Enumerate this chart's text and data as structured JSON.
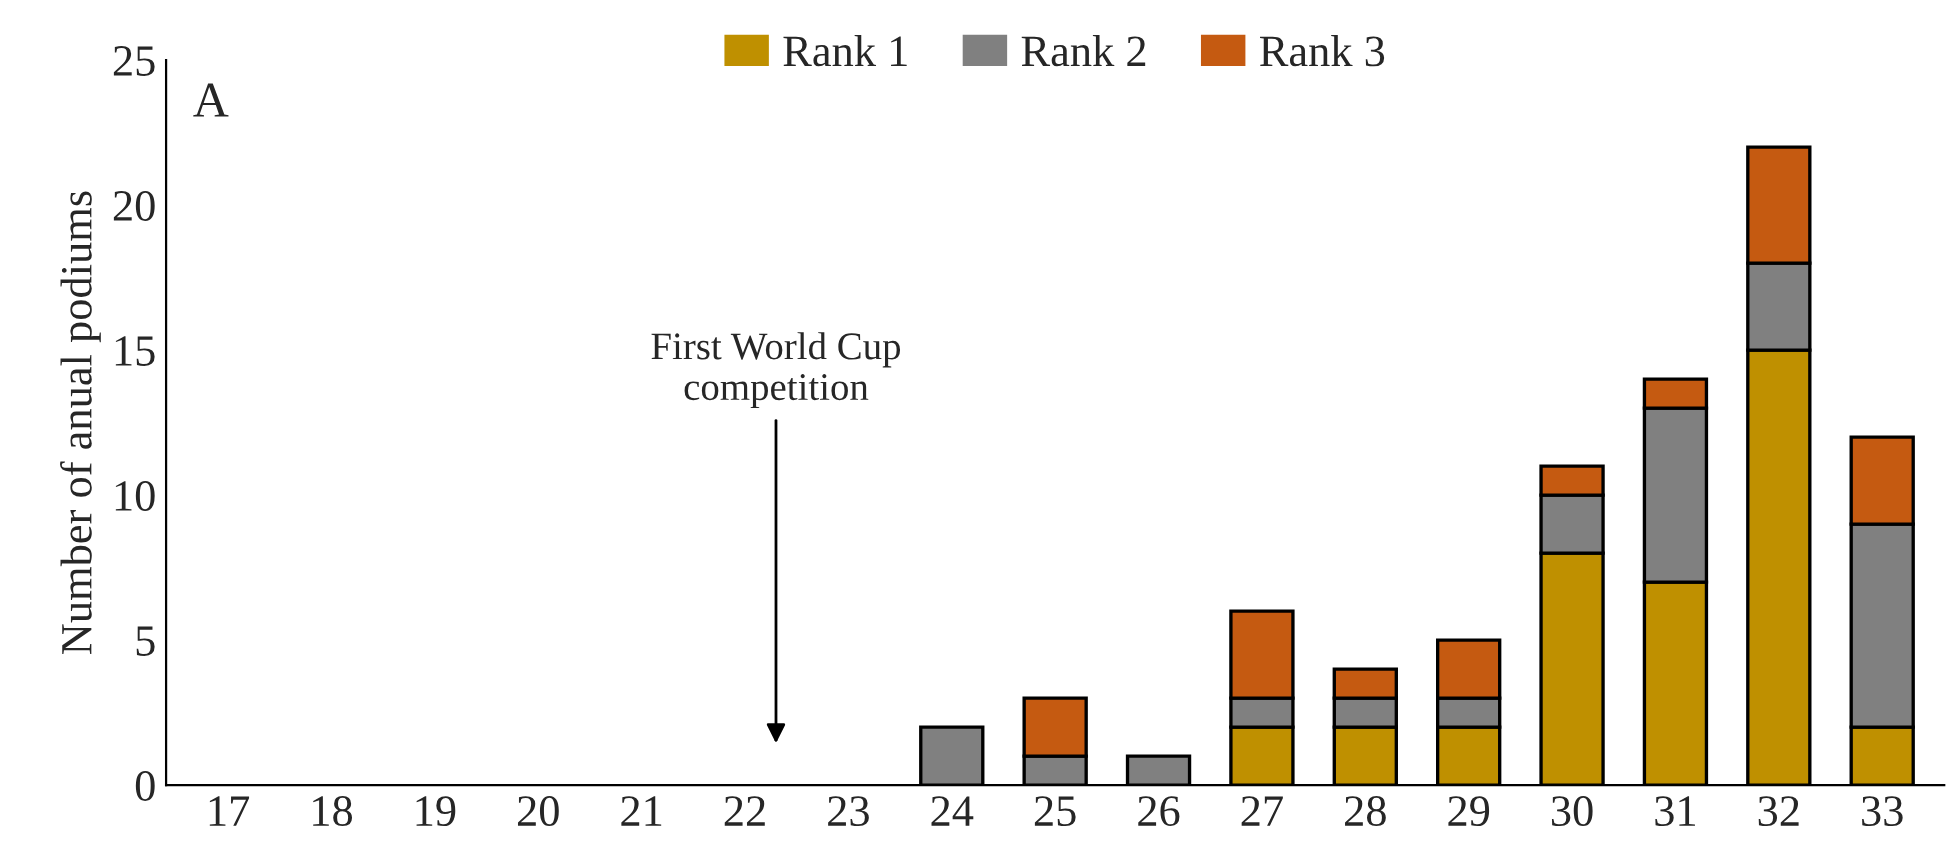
{
  "chart_data": {
    "type": "bar",
    "stacked": true,
    "ylabel": "Number of anual podiums",
    "categories": [
      "17",
      "18",
      "19",
      "20",
      "21",
      "22",
      "23",
      "24",
      "25",
      "26",
      "27",
      "28",
      "29",
      "30",
      "31",
      "32",
      "33"
    ],
    "series": [
      {
        "name": "Rank 1",
        "color": "#bf9000",
        "values": [
          0,
          0,
          0,
          0,
          0,
          0,
          0,
          0,
          0,
          0,
          2,
          2,
          2,
          8,
          7,
          15,
          2
        ]
      },
      {
        "name": "Rank 2",
        "color": "#808080",
        "values": [
          0,
          0,
          0,
          0,
          0,
          0,
          0,
          2,
          1,
          1,
          1,
          1,
          1,
          2,
          6,
          3,
          7
        ]
      },
      {
        "name": "Rank 3",
        "color": "#c55a11",
        "values": [
          0,
          0,
          0,
          0,
          0,
          0,
          0,
          0,
          2,
          0,
          3,
          1,
          2,
          1,
          1,
          4,
          3
        ]
      }
    ],
    "ylim": [
      0,
      25
    ],
    "yticks": [
      0,
      5,
      10,
      15,
      20,
      25
    ],
    "grid": false,
    "legend": "top",
    "annotations": [
      "A",
      "First World Cup\ncompetition"
    ]
  }
}
